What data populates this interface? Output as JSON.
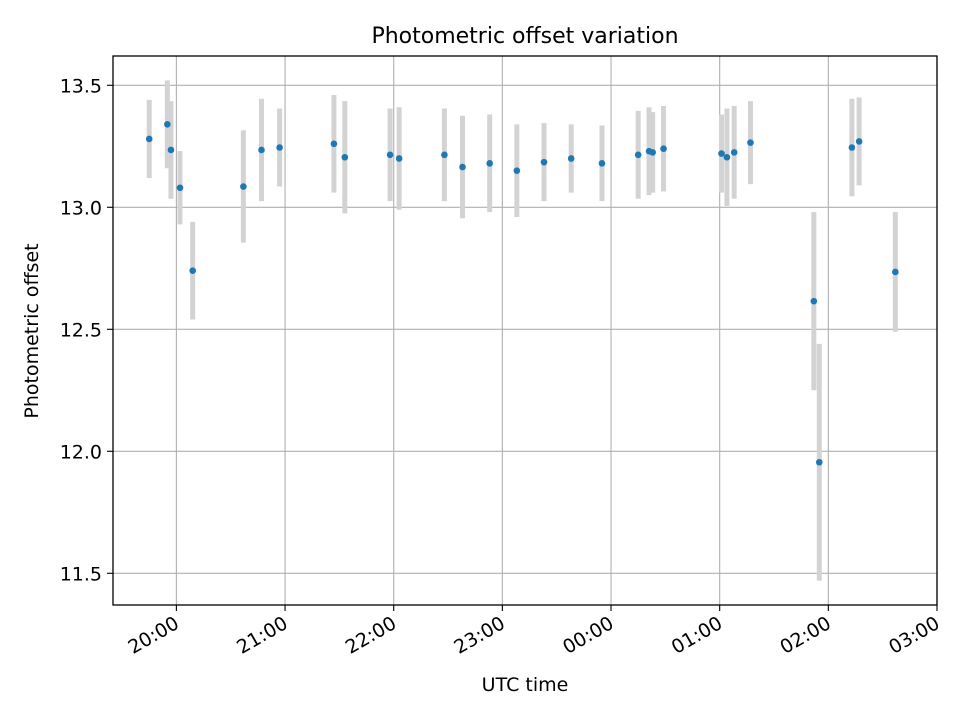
{
  "chart_data": {
    "type": "scatter",
    "title": "Photometric offset variation",
    "xlabel": "UTC time",
    "ylabel": "Photometric offset",
    "grid": true,
    "x_unit": "UTC time (HH:MM, night of observation)",
    "x_ticks": [
      "20:00",
      "21:00",
      "22:00",
      "23:00",
      "00:00",
      "01:00",
      "02:00",
      "03:00"
    ],
    "y_ticks": [
      "11.5",
      "12.0",
      "12.5",
      "13.0",
      "13.5"
    ],
    "xlim": [
      "19:25",
      "03:00"
    ],
    "ylim": [
      11.37,
      13.62
    ],
    "colors": {
      "point": "#1f77b4",
      "errorbar": "#d3d3d3",
      "grid": "#b0b0b0"
    },
    "points": [
      {
        "x": "19:45",
        "y": 13.28,
        "err": 0.16
      },
      {
        "x": "19:55",
        "y": 13.34,
        "err": 0.18
      },
      {
        "x": "19:57",
        "y": 13.235,
        "err": 0.2
      },
      {
        "x": "20:02",
        "y": 13.08,
        "err": 0.15
      },
      {
        "x": "20:09",
        "y": 12.74,
        "err": 0.2
      },
      {
        "x": "20:37",
        "y": 13.085,
        "err": 0.23
      },
      {
        "x": "20:47",
        "y": 13.235,
        "err": 0.21
      },
      {
        "x": "20:57",
        "y": 13.245,
        "err": 0.16
      },
      {
        "x": "21:27",
        "y": 13.26,
        "err": 0.2
      },
      {
        "x": "21:33",
        "y": 13.205,
        "err": 0.23
      },
      {
        "x": "21:58",
        "y": 13.215,
        "err": 0.19
      },
      {
        "x": "22:03",
        "y": 13.2,
        "err": 0.21
      },
      {
        "x": "22:28",
        "y": 13.215,
        "err": 0.19
      },
      {
        "x": "22:38",
        "y": 13.165,
        "err": 0.21
      },
      {
        "x": "22:53",
        "y": 13.18,
        "err": 0.2
      },
      {
        "x": "23:08",
        "y": 13.15,
        "err": 0.19
      },
      {
        "x": "23:23",
        "y": 13.185,
        "err": 0.16
      },
      {
        "x": "23:38",
        "y": 13.2,
        "err": 0.14
      },
      {
        "x": "23:55",
        "y": 13.18,
        "err": 0.155
      },
      {
        "x": "00:15",
        "y": 13.215,
        "err": 0.18
      },
      {
        "x": "00:21",
        "y": 13.23,
        "err": 0.18
      },
      {
        "x": "00:23",
        "y": 13.225,
        "err": 0.165
      },
      {
        "x": "00:29",
        "y": 13.24,
        "err": 0.175
      },
      {
        "x": "01:01",
        "y": 13.22,
        "err": 0.16
      },
      {
        "x": "01:04",
        "y": 13.205,
        "err": 0.2
      },
      {
        "x": "01:08",
        "y": 13.225,
        "err": 0.19
      },
      {
        "x": "01:17",
        "y": 13.265,
        "err": 0.17
      },
      {
        "x": "01:52",
        "y": 12.615,
        "err": 0.365
      },
      {
        "x": "01:55",
        "y": 11.955,
        "err": 0.485
      },
      {
        "x": "02:13",
        "y": 13.245,
        "err": 0.2
      },
      {
        "x": "02:17",
        "y": 13.27,
        "err": 0.18
      },
      {
        "x": "02:37",
        "y": 12.735,
        "err": 0.245
      }
    ]
  }
}
